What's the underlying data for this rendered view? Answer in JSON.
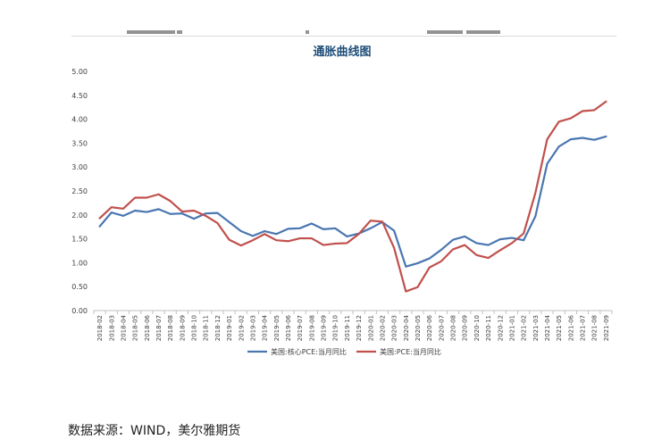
{
  "chart_data": {
    "type": "line",
    "title": "通胀曲线图",
    "xlabel": "",
    "ylabel": "",
    "ylim": [
      0,
      5
    ],
    "yticks": [
      "0.00",
      "0.50",
      "1.00",
      "1.50",
      "2.00",
      "2.50",
      "3.00",
      "3.50",
      "4.00",
      "4.50",
      "5.00"
    ],
    "categories": [
      "2018-02",
      "2018-03",
      "2018-04",
      "2018-05",
      "2018-06",
      "2018-07",
      "2018-08",
      "2018-09",
      "2018-10",
      "2018-11",
      "2018-12",
      "2019-01",
      "2019-02",
      "2019-03",
      "2019-04",
      "2019-05",
      "2019-06",
      "2019-07",
      "2019-08",
      "2019-09",
      "2019-10",
      "2019-11",
      "2019-12",
      "2020-01",
      "2020-02",
      "2020-03",
      "2020-04",
      "2020-05",
      "2020-06",
      "2020-07",
      "2020-08",
      "2020-09",
      "2020-10",
      "2020-11",
      "2020-12",
      "2021-01",
      "2021-02",
      "2021-03",
      "2021-04",
      "2021-05",
      "2021-06",
      "2021-07",
      "2021-08",
      "2021-09"
    ],
    "grid": false,
    "legend_position": "bottom",
    "series": [
      {
        "name": "美国:核心PCE:当月同比",
        "color": "#4a76b0",
        "values": [
          1.76,
          2.05,
          1.98,
          2.09,
          2.06,
          2.12,
          2.02,
          2.03,
          1.92,
          2.03,
          2.04,
          1.85,
          1.66,
          1.56,
          1.66,
          1.6,
          1.71,
          1.72,
          1.82,
          1.7,
          1.72,
          1.55,
          1.61,
          1.72,
          1.85,
          1.67,
          0.92,
          0.99,
          1.09,
          1.27,
          1.48,
          1.55,
          1.41,
          1.37,
          1.49,
          1.52,
          1.47,
          1.97,
          3.07,
          3.43,
          3.58,
          3.61,
          3.57,
          3.64
        ]
      },
      {
        "name": "美国:PCE:当月同比",
        "color": "#c0504d",
        "values": [
          1.93,
          2.16,
          2.13,
          2.36,
          2.36,
          2.43,
          2.29,
          2.07,
          2.09,
          1.98,
          1.83,
          1.48,
          1.36,
          1.47,
          1.6,
          1.47,
          1.45,
          1.51,
          1.51,
          1.37,
          1.4,
          1.41,
          1.6,
          1.88,
          1.86,
          1.31,
          0.4,
          0.49,
          0.9,
          1.03,
          1.28,
          1.37,
          1.16,
          1.1,
          1.26,
          1.41,
          1.61,
          2.46,
          3.58,
          3.95,
          4.02,
          4.17,
          4.19,
          4.37
        ]
      }
    ]
  },
  "source_note": "数据来源：WIND，美尔雅期货"
}
